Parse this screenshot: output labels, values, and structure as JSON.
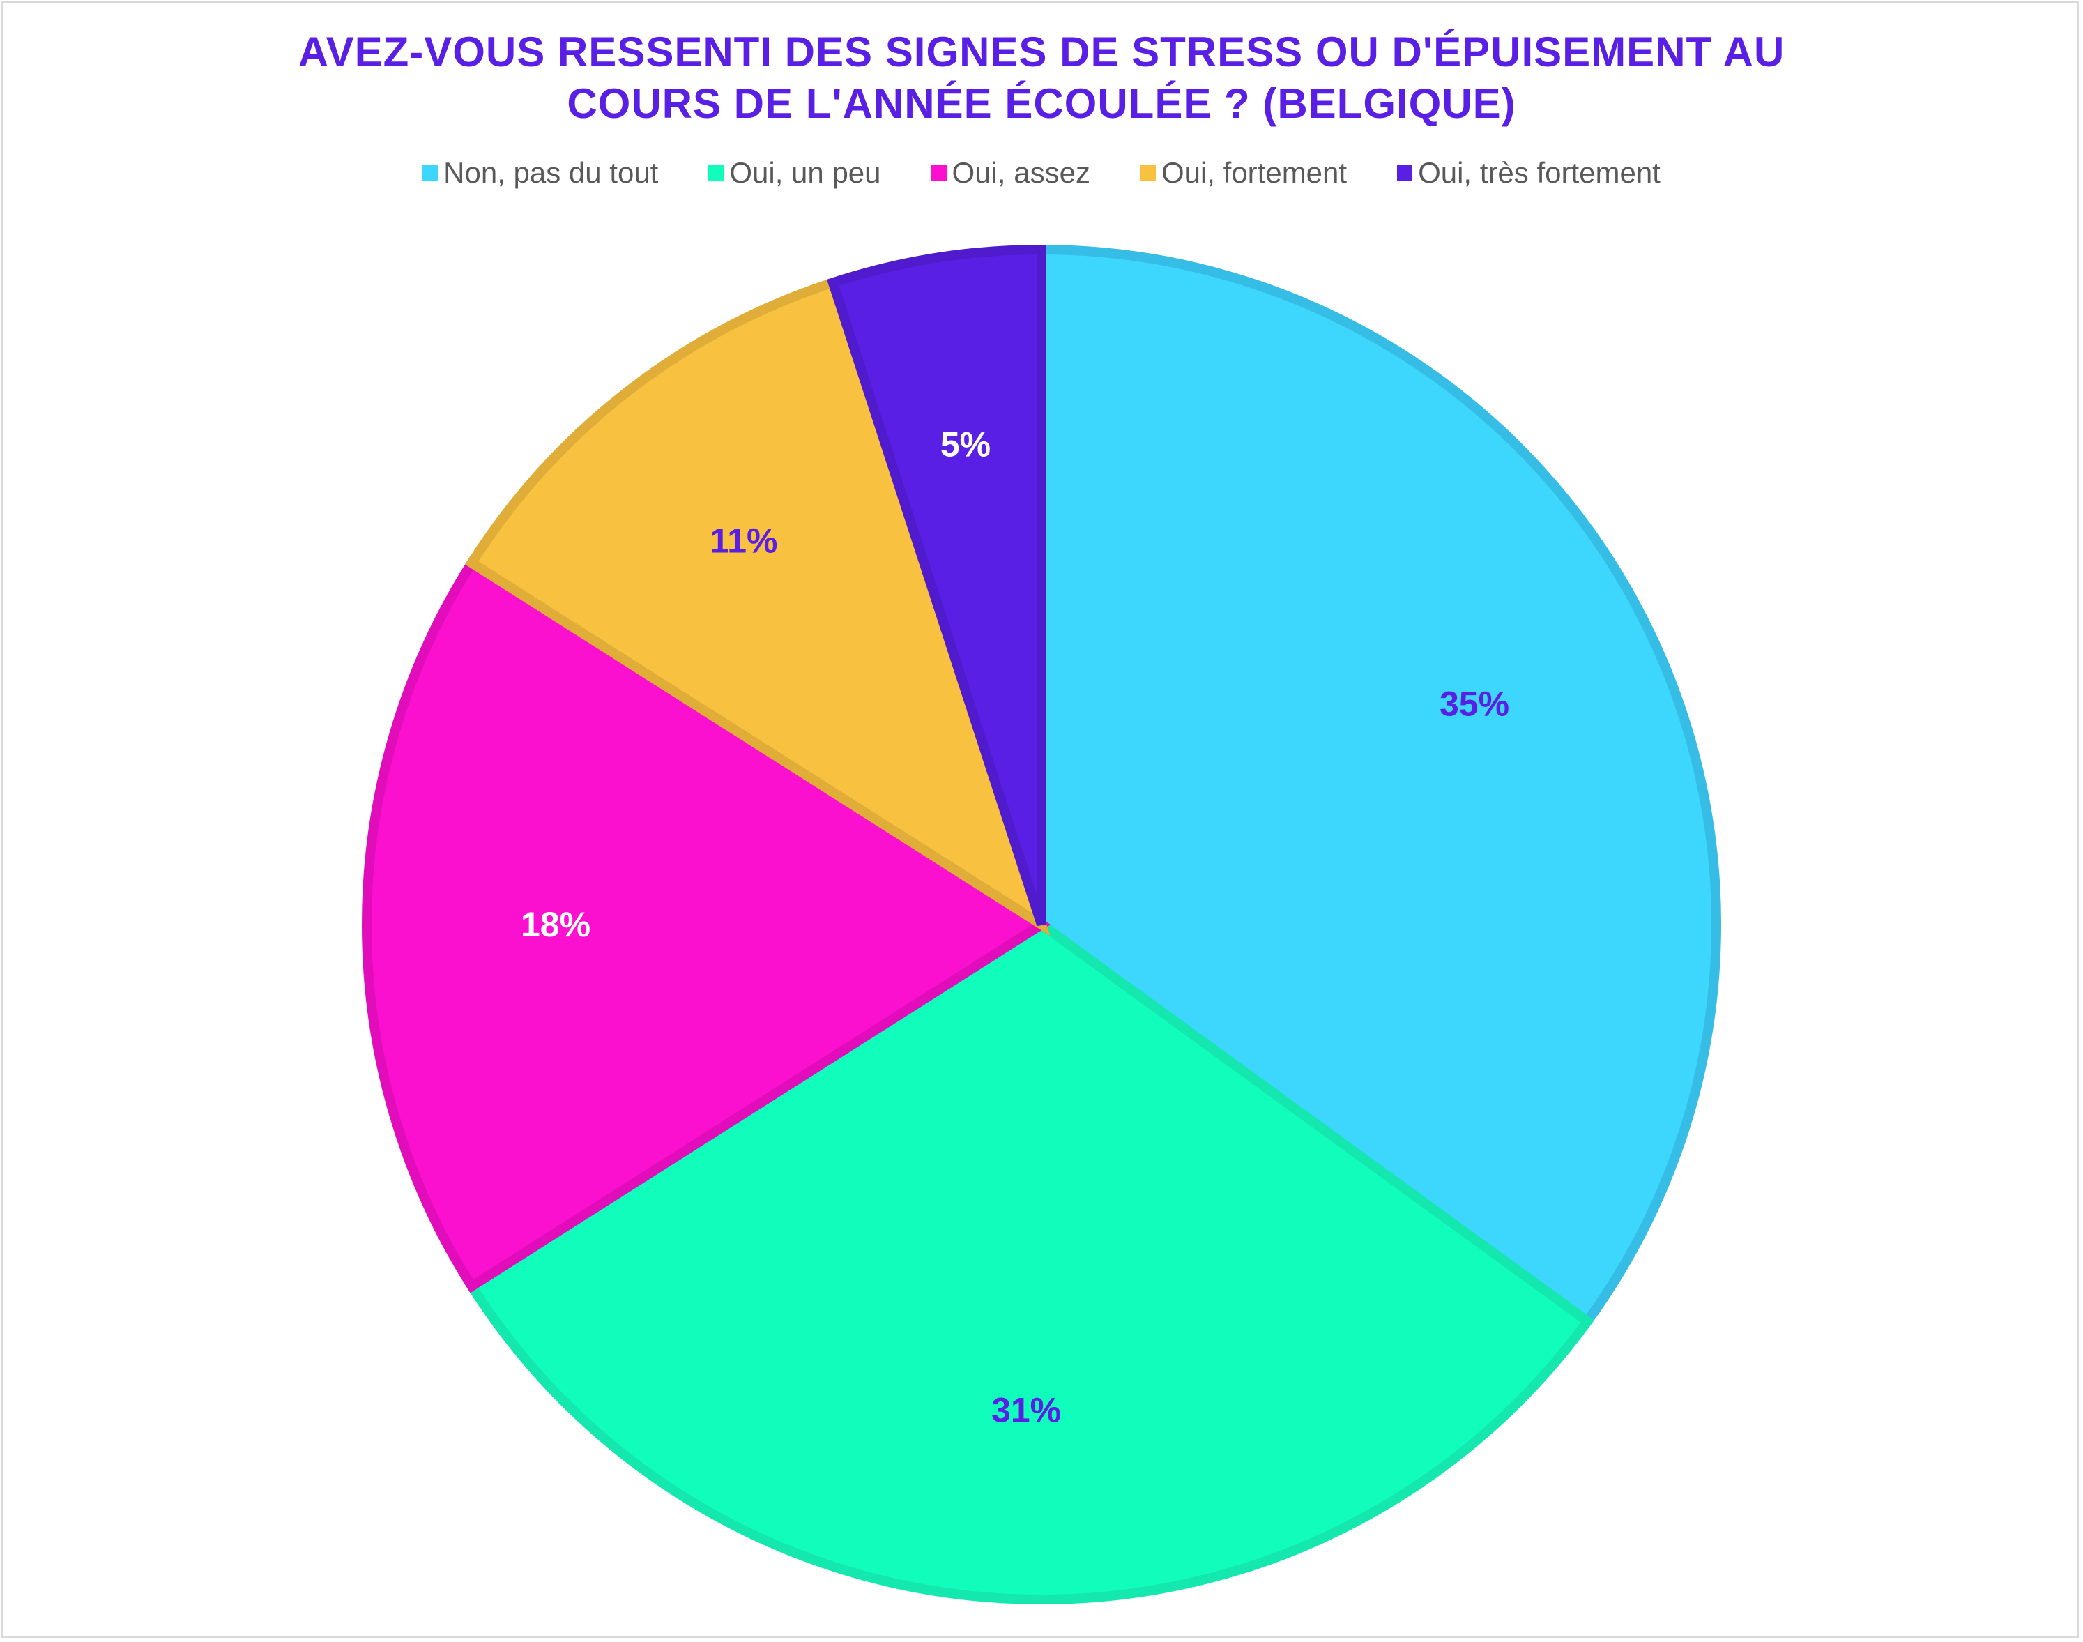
{
  "chart_data": {
    "type": "pie",
    "title": "AVEZ-VOUS RESSENTI DES SIGNES DE STRESS OU D'ÉPUISEMENT AU COURS DE L'ANNÉE ÉCOULÉE ? (BELGIQUE)",
    "title_lines": [
      "AVEZ-VOUS RESSENTI DES SIGNES DE STRESS OU D'ÉPUISEMENT AU",
      "COURS DE L'ANNÉE ÉCOULÉE ? (BELGIQUE)"
    ],
    "legend_position": "top",
    "categories": [
      "Non, pas du tout",
      "Oui, un peu",
      "Oui, assez",
      "Oui, fortement",
      "Oui, très fortement"
    ],
    "values": [
      35,
      31,
      18,
      11,
      5
    ],
    "data_labels": [
      "35%",
      "31%",
      "18%",
      "11%",
      "5%"
    ],
    "colors": [
      "#3DD6FD",
      "#10FDBB",
      "#FC10CF",
      "#F8C240",
      "#5A1FE5"
    ],
    "border_colors": [
      "#35BDE5",
      "#14E8AE",
      "#E20DBA",
      "#E0AE38",
      "#4F1BCD"
    ],
    "label_colors": [
      "#5A1FE5",
      "#5A1FE5",
      "#FFFFFF",
      "#5A1FE5",
      "#FFFFFF"
    ],
    "title_color": "#5A1FE5",
    "start_angle": "12 o'clock",
    "direction": "clockwise"
  }
}
